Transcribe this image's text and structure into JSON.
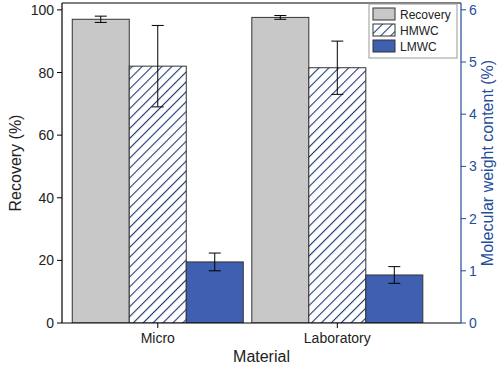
{
  "chart_data": {
    "type": "bar",
    "x_label": "Material",
    "y_label": "Recovery (%)",
    "y2_label": "Molecular weight content (%)",
    "categories": [
      "Micro",
      "Laboratory"
    ],
    "series": [
      {
        "name": "Recovery",
        "color": "#c8c8c8",
        "values": [
          97.0,
          97.6
        ],
        "errors": [
          1.0,
          0.6
        ]
      },
      {
        "name": "HMWC",
        "color": "#1f3a7a",
        "axis": "y2",
        "values": [
          4.92,
          4.89
        ],
        "errors": [
          0.78,
          0.51
        ]
      },
      {
        "name": "LMWC",
        "color": "#3f5fb0",
        "axis": "y2",
        "values": [
          1.17,
          0.92
        ],
        "errors": [
          0.17,
          0.16
        ]
      }
    ],
    "ylim": [
      0,
      102.2
    ],
    "yticks": [
      0,
      20,
      40,
      60,
      80,
      100
    ],
    "y2lim": [
      0,
      6.13
    ],
    "y2ticks": [
      0,
      1,
      2,
      3,
      4,
      5,
      6
    ],
    "legend": "top-right",
    "grid": false
  }
}
